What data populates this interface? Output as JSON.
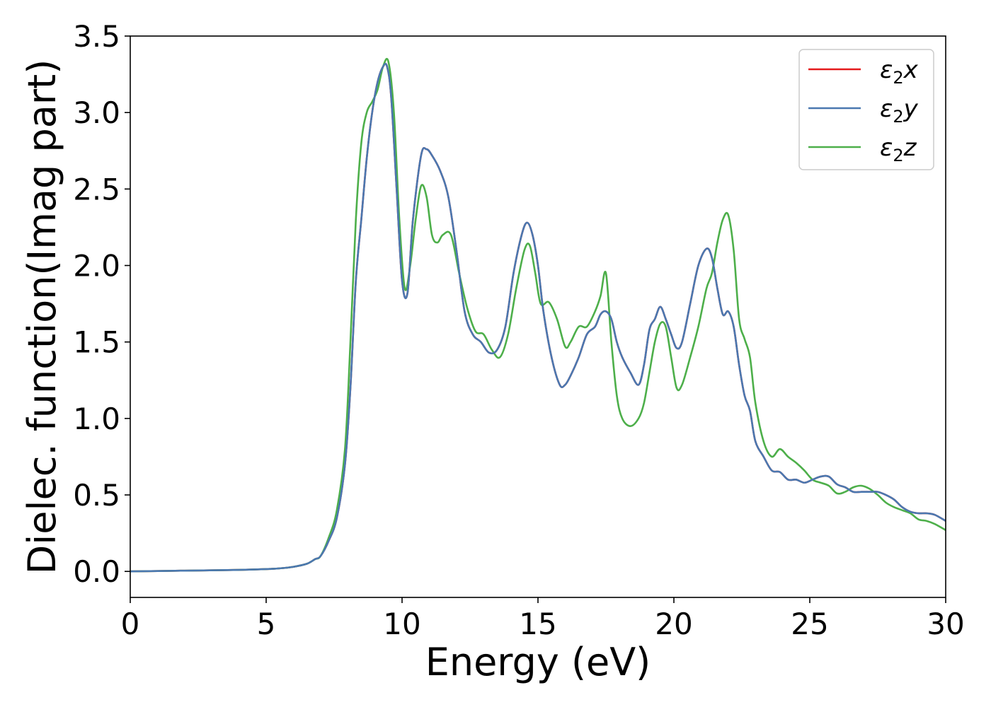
{
  "chart_data": {
    "type": "line",
    "title": "",
    "xlabel": "Energy (eV)",
    "ylabel": "Dielec. function(Imag part)",
    "xlim": [
      0,
      30
    ],
    "ylim": [
      -0.17,
      3.5
    ],
    "xticks": [
      "0",
      "5",
      "10",
      "15",
      "20",
      "25",
      "30"
    ],
    "yticks": [
      "0.0",
      "0.5",
      "1.0",
      "1.5",
      "2.0",
      "2.5",
      "3.0",
      "3.5"
    ],
    "grid": false,
    "legend_position": "top-right",
    "series": [
      {
        "name": "ε2x",
        "legend_base": "ε",
        "legend_sub": "2",
        "legend_var": "x",
        "color": "#e41a1c",
        "x": [
          0,
          2,
          4,
          5,
          5.5,
          6,
          6.5,
          6.8,
          7.0,
          7.3,
          7.6,
          7.9,
          8.1,
          8.3,
          8.5,
          8.7,
          8.9,
          9.1,
          9.3,
          9.45,
          9.6,
          9.8,
          10.0,
          10.2,
          10.4,
          10.7,
          10.9,
          11.1,
          11.4,
          11.7,
          12.0,
          12.3,
          12.6,
          12.9,
          13.2,
          13.5,
          13.8,
          14.1,
          14.4,
          14.6,
          14.8,
          15.0,
          15.2,
          15.5,
          15.8,
          16.0,
          16.2,
          16.5,
          16.8,
          17.1,
          17.3,
          17.5,
          17.7,
          17.9,
          18.1,
          18.4,
          18.7,
          18.9,
          19.1,
          19.3,
          19.5,
          19.7,
          19.9,
          20.1,
          20.3,
          20.6,
          20.9,
          21.2,
          21.4,
          21.6,
          21.8,
          22.0,
          22.2,
          22.4,
          22.6,
          22.8,
          23.0,
          23.3,
          23.6,
          23.9,
          24.2,
          24.5,
          24.8,
          25.1,
          25.4,
          25.7,
          26.0,
          26.3,
          26.6,
          26.9,
          27.2,
          27.5,
          27.8,
          28.1,
          28.4,
          28.7,
          29.0,
          29.3,
          29.6,
          30.0
        ],
        "y": [
          0.0,
          0.005,
          0.01,
          0.015,
          0.02,
          0.03,
          0.05,
          0.08,
          0.1,
          0.2,
          0.35,
          0.7,
          1.2,
          1.9,
          2.3,
          2.7,
          3.0,
          3.2,
          3.3,
          3.3,
          3.1,
          2.5,
          1.9,
          1.82,
          2.3,
          2.72,
          2.76,
          2.72,
          2.62,
          2.45,
          2.1,
          1.7,
          1.55,
          1.5,
          1.43,
          1.45,
          1.6,
          1.95,
          2.2,
          2.28,
          2.2,
          2.0,
          1.7,
          1.4,
          1.22,
          1.22,
          1.28,
          1.4,
          1.55,
          1.6,
          1.68,
          1.7,
          1.65,
          1.5,
          1.4,
          1.3,
          1.22,
          1.35,
          1.58,
          1.65,
          1.73,
          1.65,
          1.55,
          1.46,
          1.5,
          1.75,
          2.0,
          2.11,
          2.05,
          1.85,
          1.68,
          1.7,
          1.6,
          1.35,
          1.15,
          1.05,
          0.85,
          0.75,
          0.66,
          0.65,
          0.6,
          0.6,
          0.58,
          0.6,
          0.62,
          0.62,
          0.57,
          0.55,
          0.52,
          0.52,
          0.52,
          0.52,
          0.5,
          0.47,
          0.42,
          0.39,
          0.38,
          0.38,
          0.37,
          0.33
        ]
      },
      {
        "name": "ε2y",
        "legend_base": "ε",
        "legend_sub": "2",
        "legend_var": "y",
        "color": "#4a78b0",
        "x": [
          0,
          2,
          4,
          5,
          5.5,
          6,
          6.5,
          6.8,
          7.0,
          7.3,
          7.6,
          7.9,
          8.1,
          8.3,
          8.5,
          8.7,
          8.9,
          9.1,
          9.3,
          9.45,
          9.6,
          9.8,
          10.0,
          10.2,
          10.4,
          10.7,
          10.9,
          11.1,
          11.4,
          11.7,
          12.0,
          12.3,
          12.6,
          12.9,
          13.2,
          13.5,
          13.8,
          14.1,
          14.4,
          14.6,
          14.8,
          15.0,
          15.2,
          15.5,
          15.8,
          16.0,
          16.2,
          16.5,
          16.8,
          17.1,
          17.3,
          17.5,
          17.7,
          17.9,
          18.1,
          18.4,
          18.7,
          18.9,
          19.1,
          19.3,
          19.5,
          19.7,
          19.9,
          20.1,
          20.3,
          20.6,
          20.9,
          21.2,
          21.4,
          21.6,
          21.8,
          22.0,
          22.2,
          22.4,
          22.6,
          22.8,
          23.0,
          23.3,
          23.6,
          23.9,
          24.2,
          24.5,
          24.8,
          25.1,
          25.4,
          25.7,
          26.0,
          26.3,
          26.6,
          26.9,
          27.2,
          27.5,
          27.8,
          28.1,
          28.4,
          28.7,
          29.0,
          29.3,
          29.6,
          30.0
        ],
        "y": [
          0.0,
          0.005,
          0.01,
          0.015,
          0.02,
          0.03,
          0.05,
          0.08,
          0.1,
          0.2,
          0.35,
          0.7,
          1.2,
          1.9,
          2.3,
          2.7,
          3.0,
          3.2,
          3.3,
          3.3,
          3.1,
          2.5,
          1.9,
          1.82,
          2.3,
          2.72,
          2.76,
          2.72,
          2.62,
          2.45,
          2.1,
          1.7,
          1.55,
          1.5,
          1.43,
          1.45,
          1.6,
          1.95,
          2.2,
          2.28,
          2.2,
          2.0,
          1.7,
          1.4,
          1.22,
          1.22,
          1.28,
          1.4,
          1.55,
          1.6,
          1.68,
          1.7,
          1.65,
          1.5,
          1.4,
          1.3,
          1.22,
          1.35,
          1.58,
          1.65,
          1.73,
          1.65,
          1.55,
          1.46,
          1.5,
          1.75,
          2.0,
          2.11,
          2.05,
          1.85,
          1.68,
          1.7,
          1.6,
          1.35,
          1.15,
          1.05,
          0.85,
          0.75,
          0.66,
          0.65,
          0.6,
          0.6,
          0.58,
          0.6,
          0.62,
          0.62,
          0.57,
          0.55,
          0.52,
          0.52,
          0.52,
          0.52,
          0.5,
          0.47,
          0.42,
          0.39,
          0.38,
          0.38,
          0.37,
          0.33
        ]
      },
      {
        "name": "ε2z",
        "legend_base": "ε",
        "legend_sub": "2",
        "legend_var": "z",
        "color": "#4daf4a",
        "x": [
          0,
          2,
          4,
          5,
          5.5,
          6,
          6.5,
          6.8,
          7.0,
          7.3,
          7.6,
          7.9,
          8.1,
          8.3,
          8.5,
          8.7,
          8.9,
          9.1,
          9.3,
          9.5,
          9.7,
          9.9,
          10.1,
          10.3,
          10.5,
          10.7,
          10.9,
          11.1,
          11.3,
          11.5,
          11.8,
          12.1,
          12.4,
          12.7,
          13.0,
          13.3,
          13.6,
          13.9,
          14.2,
          14.5,
          14.7,
          14.9,
          15.1,
          15.4,
          15.7,
          16.0,
          16.2,
          16.5,
          16.8,
          17.1,
          17.3,
          17.5,
          17.7,
          17.9,
          18.1,
          18.4,
          18.7,
          18.9,
          19.1,
          19.3,
          19.5,
          19.7,
          19.9,
          20.1,
          20.3,
          20.6,
          20.9,
          21.2,
          21.4,
          21.6,
          21.8,
          22.0,
          22.2,
          22.4,
          22.6,
          22.8,
          23.0,
          23.3,
          23.6,
          23.9,
          24.2,
          24.5,
          24.8,
          25.1,
          25.4,
          25.7,
          26.0,
          26.3,
          26.6,
          26.9,
          27.2,
          27.5,
          27.8,
          28.1,
          28.4,
          28.7,
          29.0,
          29.3,
          29.6,
          30.0
        ],
        "y": [
          0.0,
          0.005,
          0.01,
          0.015,
          0.02,
          0.03,
          0.05,
          0.08,
          0.1,
          0.22,
          0.4,
          0.8,
          1.5,
          2.3,
          2.8,
          3.0,
          3.07,
          3.15,
          3.3,
          3.33,
          3.0,
          2.3,
          1.85,
          2.0,
          2.3,
          2.52,
          2.45,
          2.2,
          2.15,
          2.2,
          2.2,
          1.95,
          1.72,
          1.57,
          1.55,
          1.45,
          1.4,
          1.55,
          1.85,
          2.1,
          2.13,
          1.95,
          1.75,
          1.76,
          1.65,
          1.47,
          1.5,
          1.6,
          1.6,
          1.7,
          1.8,
          1.95,
          1.5,
          1.15,
          1.0,
          0.95,
          1.0,
          1.1,
          1.3,
          1.5,
          1.62,
          1.6,
          1.4,
          1.2,
          1.22,
          1.4,
          1.6,
          1.85,
          1.95,
          2.15,
          2.3,
          2.33,
          2.1,
          1.65,
          1.52,
          1.4,
          1.1,
          0.85,
          0.75,
          0.8,
          0.75,
          0.71,
          0.66,
          0.6,
          0.58,
          0.56,
          0.51,
          0.52,
          0.55,
          0.56,
          0.54,
          0.5,
          0.45,
          0.42,
          0.4,
          0.38,
          0.34,
          0.33,
          0.31,
          0.27
        ]
      }
    ]
  }
}
